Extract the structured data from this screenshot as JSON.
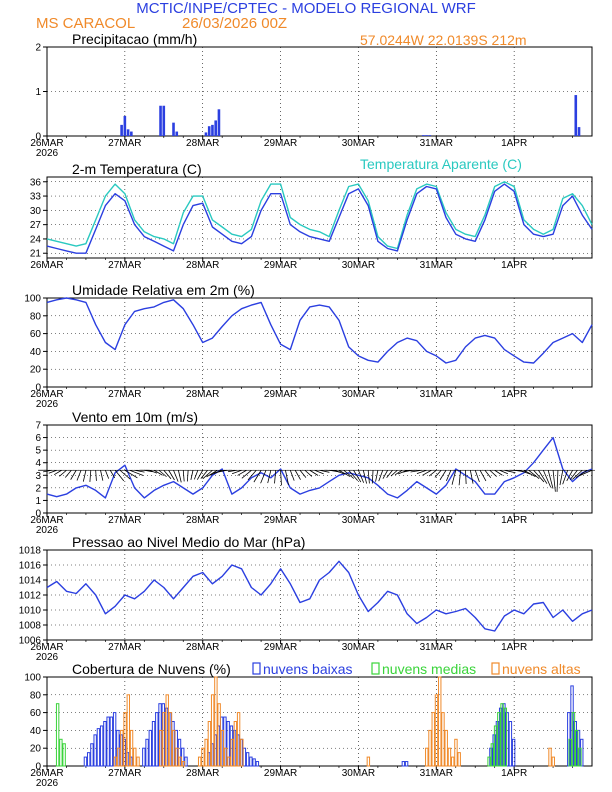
{
  "header": {
    "title": "MCTIC/INPE/CPTEC  -  MODELO REGIONAL WRF",
    "station": "MS CARACOL",
    "run": "26/03/2026 00Z",
    "coords": "57.0244W  22.0139S  212m"
  },
  "colors": {
    "blue": "#2b3fe0",
    "orange": "#f08a2a",
    "teal": "#2ac9c0",
    "green": "#3ad43a",
    "black": "#000000"
  },
  "x_axis": {
    "day_labels": [
      "26MAR",
      "27MAR",
      "28MAR",
      "29MAR",
      "30MAR",
      "31MAR",
      "1APR"
    ],
    "year_label": "2026",
    "hours_total": 168
  },
  "chart_data": [
    {
      "type": "bar",
      "title": "Precipitacao (mm/h)",
      "ylim": [
        0,
        2
      ],
      "yticks": [
        "0",
        "1",
        "2"
      ],
      "x_hours": [
        23,
        24,
        25,
        26,
        35,
        36,
        39,
        40,
        49,
        50,
        51,
        52,
        53,
        116,
        117,
        118,
        163,
        164
      ],
      "values": [
        0.25,
        0.45,
        0.15,
        0.1,
        0.68,
        0.68,
        0.3,
        0.1,
        0.08,
        0.22,
        0.25,
        0.35,
        0.6,
        0.02,
        0.02,
        0.02,
        0.92,
        0.2
      ]
    },
    {
      "type": "line",
      "title": "2-m Temperatura (C)",
      "legend": "Temperatura Aparente (C)",
      "ylim": [
        20,
        37
      ],
      "yticks": [
        "21",
        "24",
        "27",
        "30",
        "33",
        "36"
      ],
      "series": [
        {
          "name": "Temperatura",
          "hours": [
            0,
            3,
            6,
            9,
            12,
            15,
            18,
            21,
            24,
            27,
            30,
            33,
            36,
            39,
            42,
            45,
            48,
            51,
            54,
            57,
            60,
            63,
            66,
            69,
            72,
            75,
            78,
            81,
            84,
            87,
            90,
            93,
            96,
            99,
            102,
            105,
            108,
            111,
            114,
            117,
            120,
            123,
            126,
            129,
            132,
            135,
            138,
            141,
            144,
            147,
            150,
            153,
            156,
            159,
            162,
            165,
            168
          ],
          "values": [
            22.5,
            22,
            21.5,
            21,
            21,
            26,
            31,
            33.5,
            32,
            27,
            24.5,
            23.5,
            22.5,
            21.5,
            27,
            31,
            31.5,
            26.5,
            25,
            23.5,
            23,
            24.5,
            30,
            33.5,
            33.5,
            27,
            25.5,
            24.5,
            24,
            23.5,
            28.5,
            33.5,
            34.5,
            31,
            23.5,
            22,
            21.5,
            28,
            33.5,
            35,
            34.5,
            28.5,
            25,
            24,
            23.5,
            28,
            34,
            35.5,
            34,
            27,
            25,
            24.5,
            25,
            31,
            33,
            29,
            26
          ]
        },
        {
          "name": "Temperatura Aparente (C)",
          "hours": [
            0,
            3,
            6,
            9,
            12,
            15,
            18,
            21,
            24,
            27,
            30,
            33,
            36,
            39,
            42,
            45,
            48,
            51,
            54,
            57,
            60,
            63,
            66,
            69,
            72,
            75,
            78,
            81,
            84,
            87,
            90,
            93,
            96,
            99,
            102,
            105,
            108,
            111,
            114,
            117,
            120,
            123,
            126,
            129,
            132,
            135,
            138,
            141,
            144,
            147,
            150,
            153,
            156,
            159,
            162,
            165,
            168
          ],
          "values": [
            24,
            23.5,
            23,
            22.5,
            23,
            28,
            33,
            35.5,
            33.5,
            28,
            25.5,
            24.5,
            24,
            23,
            29.5,
            33,
            33,
            28,
            26.5,
            25,
            24.5,
            26,
            32,
            35.5,
            35.5,
            28.5,
            27,
            26,
            25.5,
            24.5,
            30,
            35,
            35.5,
            32,
            24.5,
            22.5,
            22,
            29,
            34.5,
            35.5,
            35,
            29.5,
            26,
            25,
            24.5,
            29,
            35,
            36,
            35,
            28,
            26,
            25,
            26,
            32.5,
            33.5,
            31,
            27
          ]
        }
      ]
    },
    {
      "type": "line",
      "title": "Umidade Relativa em 2m (%)",
      "ylim": [
        0,
        100
      ],
      "yticks": [
        "0",
        "20",
        "40",
        "60",
        "80",
        "100"
      ],
      "series": [
        {
          "name": "Umidade Relativa",
          "hours": [
            0,
            3,
            6,
            9,
            12,
            15,
            18,
            21,
            24,
            27,
            30,
            33,
            36,
            39,
            42,
            45,
            48,
            51,
            54,
            57,
            60,
            63,
            66,
            69,
            72,
            75,
            78,
            81,
            84,
            87,
            90,
            93,
            96,
            99,
            102,
            105,
            108,
            111,
            114,
            117,
            120,
            123,
            126,
            129,
            132,
            135,
            138,
            141,
            144,
            147,
            150,
            153,
            156,
            159,
            162,
            165,
            168
          ],
          "values": [
            95,
            98,
            100,
            98,
            95,
            70,
            50,
            42,
            70,
            85,
            88,
            90,
            95,
            98,
            88,
            70,
            50,
            55,
            68,
            80,
            88,
            92,
            95,
            70,
            48,
            42,
            75,
            90,
            92,
            90,
            75,
            45,
            35,
            30,
            28,
            40,
            50,
            55,
            52,
            40,
            35,
            27,
            30,
            45,
            55,
            58,
            55,
            42,
            35,
            28,
            27,
            38,
            50,
            55,
            60,
            50,
            70
          ]
        }
      ]
    },
    {
      "type": "line",
      "title": "Vento em 10m (m/s)",
      "ylim": [
        0,
        7
      ],
      "yticks": [
        "0",
        "1",
        "2",
        "3",
        "4",
        "5",
        "6",
        "7"
      ],
      "series": [
        {
          "name": "Vento",
          "hours": [
            0,
            3,
            6,
            9,
            12,
            15,
            18,
            21,
            24,
            27,
            30,
            33,
            36,
            39,
            42,
            45,
            48,
            51,
            54,
            57,
            60,
            63,
            66,
            69,
            72,
            75,
            78,
            81,
            84,
            87,
            90,
            93,
            96,
            99,
            102,
            105,
            108,
            111,
            114,
            117,
            120,
            123,
            126,
            129,
            132,
            135,
            138,
            141,
            144,
            147,
            150,
            153,
            156,
            159,
            162,
            165,
            168
          ],
          "values": [
            1.5,
            1.3,
            1.5,
            2,
            2.2,
            1.8,
            1.2,
            3.2,
            3.8,
            2,
            1.2,
            1.8,
            2.2,
            2.5,
            2,
            1.5,
            2,
            3,
            3.5,
            1.5,
            2,
            2.8,
            3.2,
            2.8,
            3.5,
            2,
            1.5,
            1.8,
            2,
            2.5,
            3,
            3.2,
            3,
            2.8,
            2.2,
            1.5,
            1.2,
            1.8,
            2.5,
            2,
            1.5,
            2.2,
            3.5,
            3,
            2.5,
            1.5,
            1.5,
            2.5,
            2.8,
            3.2,
            4,
            5,
            6,
            3.5,
            2.5,
            3.2,
            3.5
          ]
        }
      ]
    },
    {
      "type": "line",
      "title": "Pressao ao Nivel Medio do Mar (hPa)",
      "ylim": [
        1006,
        1018
      ],
      "yticks": [
        "1006",
        "1008",
        "1010",
        "1012",
        "1014",
        "1016",
        "1018"
      ],
      "series": [
        {
          "name": "Pressao",
          "hours": [
            0,
            3,
            6,
            9,
            12,
            15,
            18,
            21,
            24,
            27,
            30,
            33,
            36,
            39,
            42,
            45,
            48,
            51,
            54,
            57,
            60,
            63,
            66,
            69,
            72,
            75,
            78,
            81,
            84,
            87,
            90,
            93,
            96,
            99,
            102,
            105,
            108,
            111,
            114,
            117,
            120,
            123,
            126,
            129,
            132,
            135,
            138,
            141,
            144,
            147,
            150,
            153,
            156,
            159,
            162,
            165,
            168
          ],
          "values": [
            1013,
            1013.8,
            1012.5,
            1012.2,
            1013.5,
            1012,
            1009.5,
            1010.5,
            1012,
            1011.5,
            1012.5,
            1014,
            1013,
            1011.5,
            1013,
            1014.5,
            1015,
            1013.5,
            1014.5,
            1016,
            1015.5,
            1013,
            1012,
            1013.5,
            1015.5,
            1013.5,
            1011,
            1011.5,
            1014,
            1015,
            1016.5,
            1015,
            1012,
            1009.8,
            1011,
            1012.5,
            1012,
            1009.5,
            1008.2,
            1009,
            1010,
            1009.5,
            1009.8,
            1010.2,
            1009,
            1007.5,
            1007.2,
            1009.2,
            1010,
            1009.5,
            1010.8,
            1011,
            1009,
            1010,
            1008.5,
            1009.5,
            1010
          ]
        }
      ]
    },
    {
      "type": "bar",
      "title": "Cobertura de Nuvens (%)",
      "legend": [
        "nuvens baixas",
        "nuvens medias",
        "nuvens altas"
      ],
      "ylim": [
        0,
        100
      ],
      "yticks": [
        "0",
        "20",
        "40",
        "60",
        "80",
        "100"
      ],
      "series": [
        {
          "name": "nuvens baixas",
          "hours": [
            12,
            13,
            14,
            15,
            16,
            17,
            18,
            19,
            20,
            21,
            22,
            23,
            24,
            25,
            26,
            30,
            31,
            32,
            33,
            34,
            35,
            36,
            37,
            38,
            39,
            40,
            41,
            42,
            43,
            50,
            51,
            52,
            53,
            54,
            55,
            56,
            57,
            58,
            59,
            60,
            61,
            62,
            63,
            64,
            65,
            110,
            111,
            137,
            138,
            139,
            140,
            141,
            142,
            143,
            144,
            161,
            162,
            163,
            164,
            165
          ],
          "values": [
            10,
            15,
            25,
            35,
            42,
            45,
            50,
            55,
            55,
            60,
            40,
            35,
            30,
            15,
            10,
            20,
            30,
            40,
            50,
            60,
            70,
            70,
            65,
            60,
            50,
            40,
            30,
            20,
            10,
            15,
            25,
            35,
            45,
            55,
            55,
            50,
            45,
            40,
            35,
            30,
            20,
            15,
            10,
            8,
            5,
            5,
            5,
            20,
            35,
            50,
            65,
            70,
            60,
            50,
            30,
            60,
            90,
            50,
            40,
            30
          ]
        },
        {
          "name": "nuvens medias",
          "hours": [
            3,
            4,
            5,
            136,
            137,
            138,
            139,
            140,
            141,
            161,
            162,
            163,
            164
          ],
          "values": [
            70,
            30,
            25,
            10,
            25,
            45,
            60,
            70,
            65,
            30,
            60,
            40,
            20
          ]
        },
        {
          "name": "nuvens altas",
          "hours": [
            21,
            22,
            23,
            24,
            25,
            26,
            27,
            28,
            35,
            36,
            37,
            38,
            39,
            40,
            41,
            42,
            47,
            48,
            49,
            50,
            51,
            52,
            53,
            54,
            55,
            56,
            57,
            58,
            59,
            60,
            99,
            117,
            118,
            119,
            120,
            121,
            122,
            123,
            124,
            125,
            126,
            127,
            155,
            156
          ],
          "values": [
            10,
            20,
            40,
            60,
            80,
            40,
            20,
            10,
            40,
            60,
            80,
            60,
            40,
            20,
            10,
            5,
            10,
            20,
            30,
            50,
            80,
            100,
            70,
            40,
            20,
            10,
            30,
            50,
            60,
            30,
            10,
            20,
            40,
            60,
            80,
            100,
            60,
            40,
            20,
            10,
            30,
            15,
            20,
            10
          ]
        }
      ]
    }
  ]
}
